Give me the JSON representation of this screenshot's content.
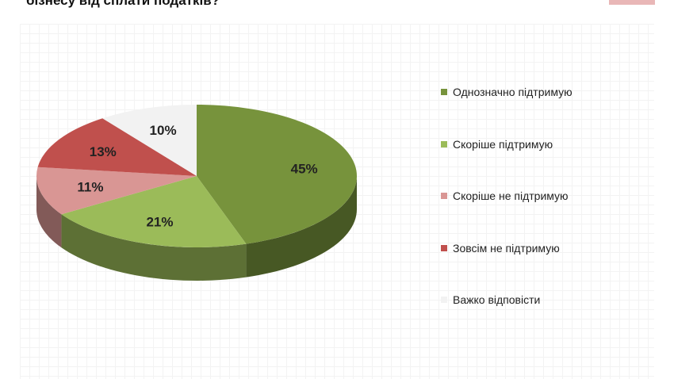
{
  "title": "бізнесу від сплати податків?",
  "chart_data": {
    "type": "pie",
    "categories": [
      "Однозначно підтримую",
      "Скоріше підтримую",
      "Скоріше не підтримую",
      "Зовсім не підтримую",
      "Важко відповісти"
    ],
    "values": [
      45,
      21,
      11,
      13,
      10
    ],
    "labels": [
      "45%",
      "21%",
      "11%",
      "13%",
      "10%"
    ],
    "colors": [
      "#77933c",
      "#9bbb59",
      "#d99694",
      "#c0504d",
      "#f2f2f2"
    ],
    "legend_position": "right",
    "style": "3d"
  }
}
